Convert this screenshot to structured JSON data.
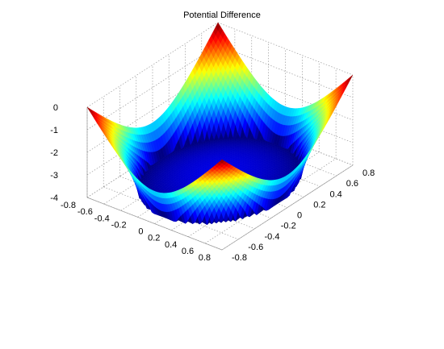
{
  "chart_data": {
    "type": "surface",
    "title": "Potential Difference",
    "xlabel": "",
    "ylabel": "",
    "zlabel": "",
    "xlim": [
      -0.8,
      0.8
    ],
    "ylim": [
      -0.8,
      0.8
    ],
    "zlim": [
      -4,
      0
    ],
    "x_ticks": [
      "-0.8",
      "-0.6",
      "-0.4",
      "-0.2",
      "0",
      "0.2",
      "0.4",
      "0.6",
      "0.8"
    ],
    "y_ticks": [
      "-0.8",
      "-0.6",
      "-0.4",
      "-0.2",
      "0",
      "0.2",
      "0.4",
      "0.6",
      "0.8"
    ],
    "z_ticks": [
      "-4",
      "-3",
      "-2",
      "-1",
      "0"
    ],
    "grid": true,
    "colormap": "jet",
    "surface": {
      "outer_region": "|x| > 0.7 or |y| > 0.7",
      "inner_radius": 0.7,
      "rim_value": -4,
      "center_value": -3.6,
      "corner_value": 0
    }
  }
}
